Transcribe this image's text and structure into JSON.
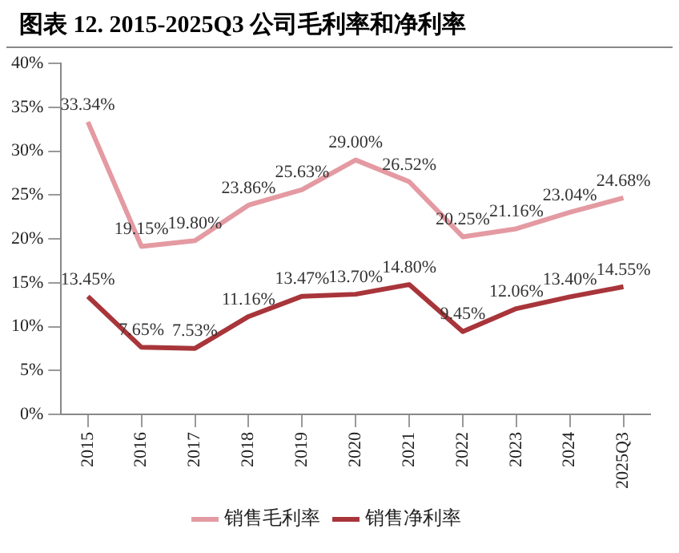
{
  "chart_data": {
    "type": "line",
    "title": "图表 12. 2015-2025Q3 公司毛利率和净利率",
    "categories": [
      "2015",
      "2016",
      "2017",
      "2018",
      "2019",
      "2020",
      "2021",
      "2022",
      "2023",
      "2024",
      "2025Q3"
    ],
    "series": [
      {
        "name": "销售毛利率",
        "color": "#e49aa2",
        "values": [
          33.34,
          19.15,
          19.8,
          23.86,
          25.63,
          29.0,
          26.52,
          20.25,
          21.16,
          23.04,
          24.68
        ],
        "value_labels": [
          "33.34%",
          "19.15%",
          "19.80%",
          "23.86%",
          "25.63%",
          "29.00%",
          "26.52%",
          "20.25%",
          "21.16%",
          "23.04%",
          "24.68%"
        ]
      },
      {
        "name": "销售净利率",
        "color": "#a8353a",
        "values": [
          13.45,
          7.65,
          7.53,
          11.16,
          13.47,
          13.7,
          14.8,
          9.45,
          12.06,
          13.4,
          14.55
        ],
        "value_labels": [
          "13.45%",
          "7.65%",
          "7.53%",
          "11.16%",
          "13.47%",
          "13.70%",
          "14.80%",
          "9.45%",
          "12.06%",
          "13.40%",
          "14.55%"
        ]
      }
    ],
    "ylim": [
      0,
      40
    ],
    "yticks": [
      {
        "value": 0,
        "label": "0%"
      },
      {
        "value": 5,
        "label": "5%"
      },
      {
        "value": 10,
        "label": "10%"
      },
      {
        "value": 15,
        "label": "15%"
      },
      {
        "value": 20,
        "label": "20%"
      },
      {
        "value": 25,
        "label": "25%"
      },
      {
        "value": 30,
        "label": "30%"
      },
      {
        "value": 35,
        "label": "35%"
      },
      {
        "value": 40,
        "label": "40%"
      }
    ],
    "grid": false,
    "legend": "bottom",
    "marker": "none",
    "line_style": "solid"
  }
}
